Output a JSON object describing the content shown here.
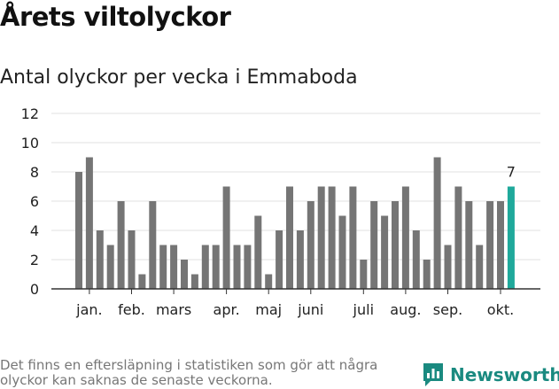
{
  "header": {
    "title": "Årets viltolyckor",
    "subtitle": "Antal olyckor per vecka i Emmaboda"
  },
  "footer": {
    "note": "Det finns en eftersläpning i statistiken som gör att några olyckor kan saknas de senaste veckorna.",
    "brand": "Newsworthy",
    "brand_icon": "newsworthy-logo-icon"
  },
  "colors": {
    "bar": "#757575",
    "highlight": "#1fa99b",
    "grid": "#e2e2e2",
    "brand": "#1a8a80"
  },
  "chart_data": {
    "type": "bar",
    "title": "Antal olyckor per vecka i Emmaboda",
    "xlabel": "",
    "ylabel": "",
    "ylim": [
      0,
      12
    ],
    "yticks": [
      0,
      2,
      4,
      6,
      8,
      10,
      12
    ],
    "grid": true,
    "values": [
      8,
      9,
      4,
      3,
      6,
      4,
      1,
      6,
      3,
      3,
      2,
      1,
      3,
      3,
      7,
      3,
      3,
      5,
      1,
      4,
      7,
      4,
      6,
      7,
      7,
      5,
      7,
      2,
      6,
      5,
      6,
      7,
      4,
      2,
      9,
      3,
      7,
      6,
      3,
      6,
      6,
      7
    ],
    "highlight_index": 41,
    "highlight_label": "7",
    "month_labels": [
      {
        "label": "jan.",
        "index": 1
      },
      {
        "label": "feb.",
        "index": 5
      },
      {
        "label": "mars",
        "index": 9
      },
      {
        "label": "apr.",
        "index": 14
      },
      {
        "label": "maj",
        "index": 18
      },
      {
        "label": "juni",
        "index": 22
      },
      {
        "label": "juli",
        "index": 27
      },
      {
        "label": "aug.",
        "index": 31
      },
      {
        "label": "sep.",
        "index": 35
      },
      {
        "label": "okt.",
        "index": 40
      }
    ]
  }
}
